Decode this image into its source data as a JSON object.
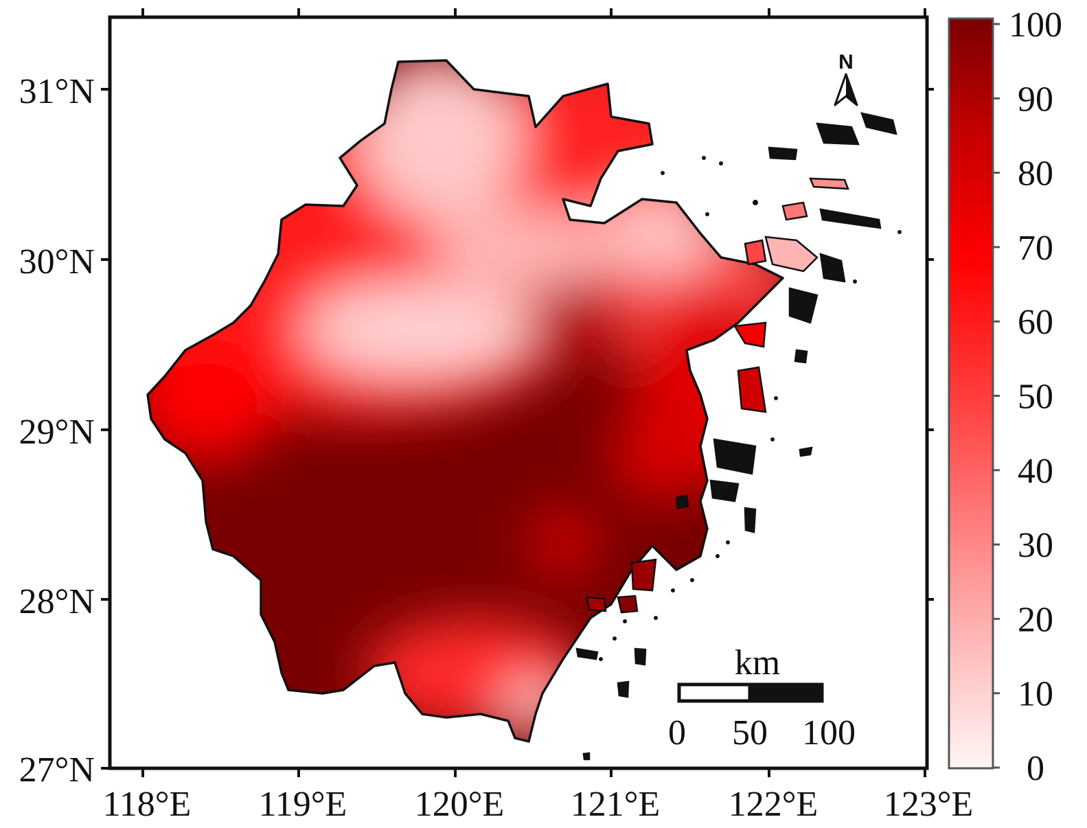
{
  "map": {
    "lat_labels": [
      "31°N",
      "30°N",
      "29°N",
      "28°N",
      "27°N"
    ],
    "lon_labels": [
      "118°E",
      "119°E",
      "120°E",
      "121°E",
      "122°E",
      "123°E"
    ],
    "north_arrow_label": "N",
    "scale_bar": {
      "unit": "km",
      "tick_labels": [
        "0",
        "50",
        "100"
      ]
    }
  },
  "colorbar": {
    "tick_labels": [
      "100",
      "90",
      "80",
      "70",
      "60",
      "50",
      "40",
      "30",
      "20",
      "10",
      "0"
    ],
    "colors": [
      "#fff5f5",
      "#ff0000",
      "#7a0000"
    ]
  }
}
